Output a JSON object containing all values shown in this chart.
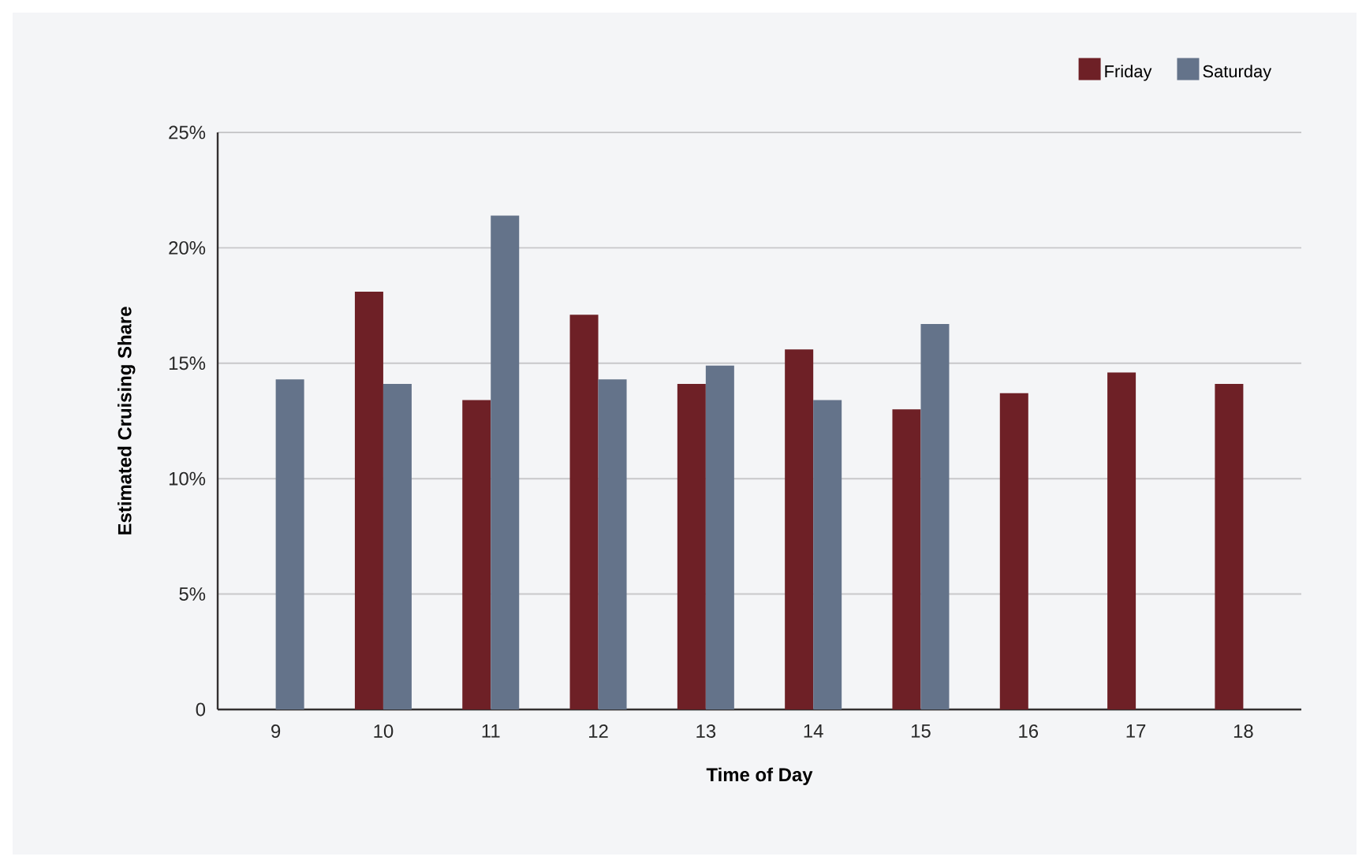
{
  "chart_data": {
    "type": "bar",
    "xlabel": "Time of Day",
    "ylabel": "Estimated Cruising Share",
    "categories": [
      "9",
      "10",
      "11",
      "12",
      "13",
      "14",
      "15",
      "16",
      "17",
      "18"
    ],
    "series": [
      {
        "name": "Friday",
        "color": "#6e2026",
        "values": [
          null,
          18.1,
          13.4,
          17.1,
          14.1,
          15.6,
          13.0,
          13.7,
          14.6,
          14.1
        ]
      },
      {
        "name": "Saturday",
        "color": "#64738a",
        "values": [
          14.3,
          14.1,
          21.4,
          14.3,
          14.9,
          13.4,
          16.7,
          null,
          null,
          null
        ]
      }
    ],
    "ylim": [
      0,
      25
    ],
    "yticks": [
      {
        "value": 0,
        "label": "0"
      },
      {
        "value": 5,
        "label": "5%"
      },
      {
        "value": 10,
        "label": "10%"
      },
      {
        "value": 15,
        "label": "15%"
      },
      {
        "value": 20,
        "label": "20%"
      },
      {
        "value": 25,
        "label": "25%"
      }
    ],
    "grid": "y",
    "legend": "top right"
  }
}
